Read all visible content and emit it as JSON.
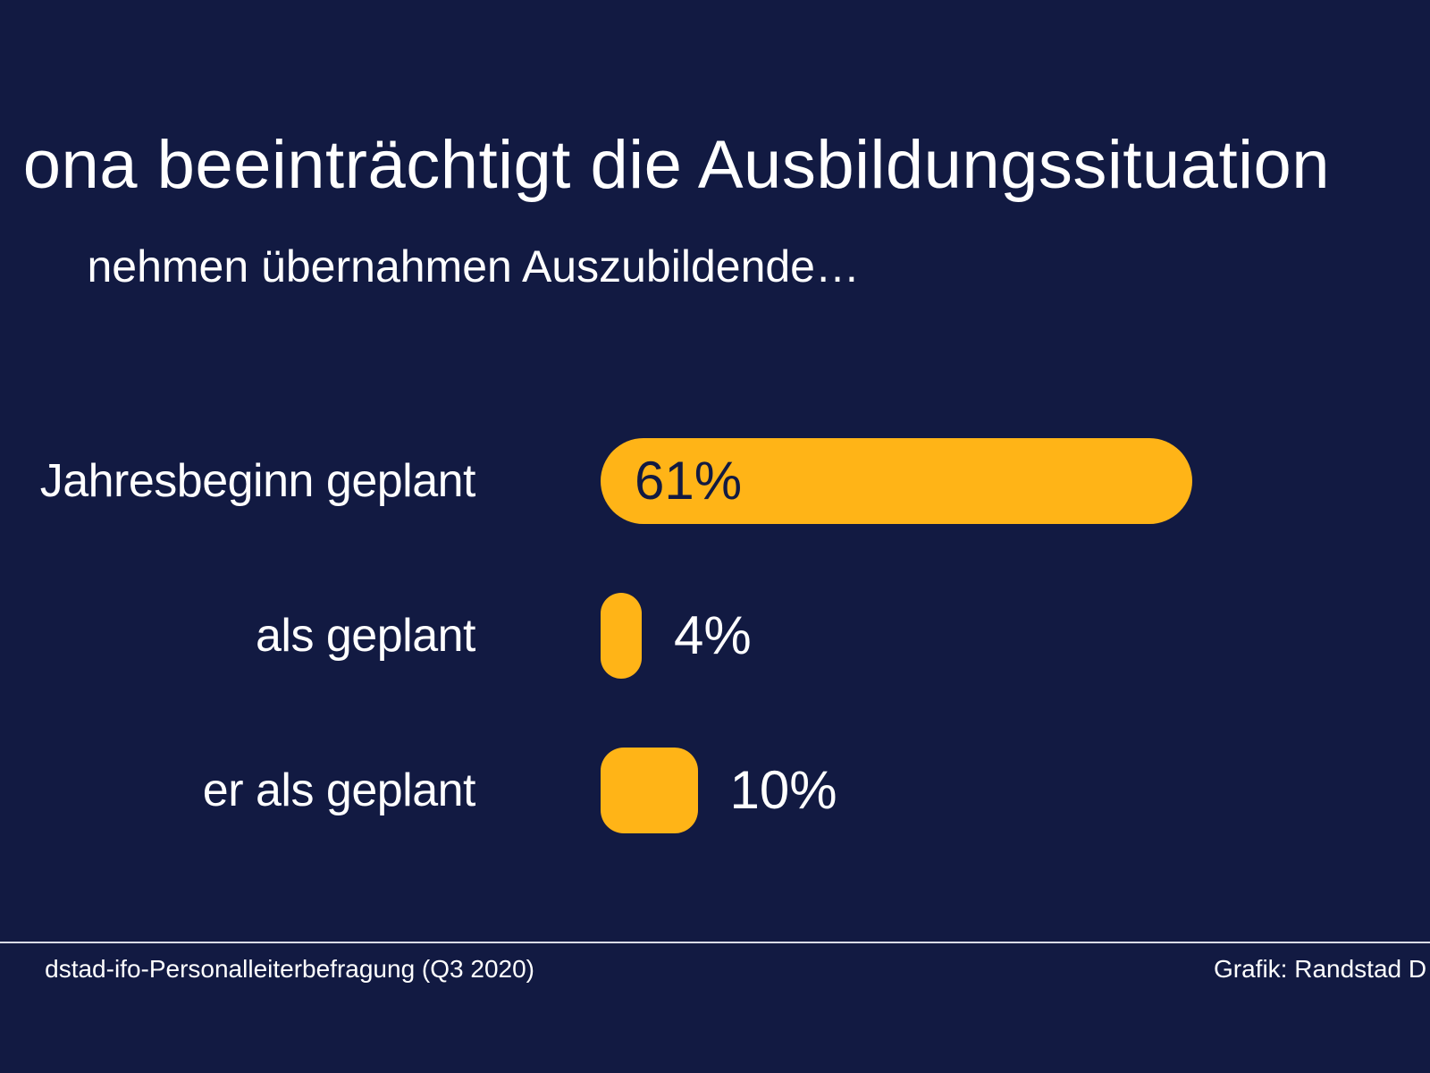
{
  "title": "ona beeinträchtigt die Ausbildungssituation",
  "subtitle": "nehmen übernahmen Auszubildende…",
  "footer": {
    "source": "dstad-ifo-Personalleiterbefragung (Q3 2020)",
    "credit": "Grafik: Randstad D"
  },
  "colors": {
    "background": "#121a42",
    "bar": "#ffb417",
    "text": "#ffffff"
  },
  "chart_data": {
    "type": "bar",
    "orientation": "horizontal",
    "title": "ona beeinträchtigt die Ausbildungssituation",
    "subtitle": "nehmen übernahmen Auszubildende…",
    "categories": [
      "Jahresbeginn geplant",
      "als geplant",
      "er als geplant"
    ],
    "values": [
      61,
      4,
      10
    ],
    "value_labels": [
      "61%",
      "4%",
      "10%"
    ],
    "unit": "%",
    "xlim": [
      0,
      100
    ],
    "grid": false,
    "legend": "none"
  }
}
